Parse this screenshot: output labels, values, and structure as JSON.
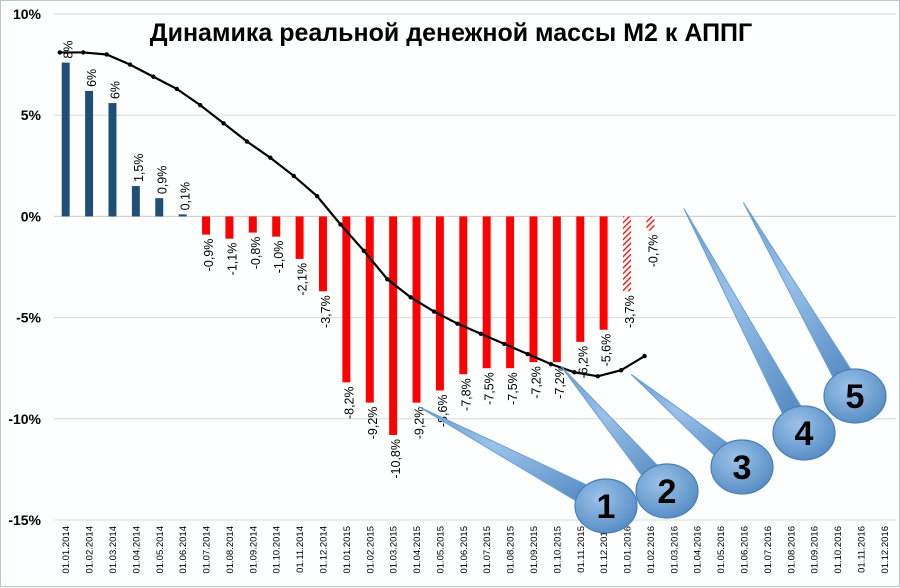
{
  "chart_data": {
    "type": "bar",
    "title": "Динамика реальной денежной массы М2 к АППГ",
    "ylim": [
      -15,
      10
    ],
    "y_ticks": [
      "10%",
      "5%",
      "0%",
      "-5%",
      "-10%",
      "-15%"
    ],
    "y_tick_values": [
      10,
      5,
      0,
      -5,
      -10,
      -15
    ],
    "grid": true,
    "categories": [
      "01.01.2014",
      "01.02.2014",
      "01.03.2014",
      "01.04.2014",
      "01.05.2014",
      "01.06.2014",
      "01.07.2014",
      "01.08.2014",
      "01.09.2014",
      "01.10.2014",
      "01.11.2014",
      "01.12.2014",
      "01.01.2015",
      "01.02.2015",
      "01.03.2015",
      "01.04.2015",
      "01.05.2015",
      "01.06.2015",
      "01.07.2015",
      "01.08.2015",
      "01.09.2015",
      "01.10.2015",
      "01.11.2015",
      "01.12.2015",
      "01.01.2016",
      "01.02.2016",
      "01.03.2016",
      "01.04.2016",
      "01.05.2016",
      "01.06.2016",
      "01.07.2016",
      "01.08.2016",
      "01.09.2016",
      "01.10.2016",
      "01.11.2016",
      "01.12.2016"
    ],
    "bars": {
      "values": [
        7.6,
        6.2,
        5.6,
        1.5,
        0.9,
        0.1,
        -0.9,
        -1.1,
        -0.8,
        -1.0,
        -2.1,
        -3.7,
        -8.2,
        -9.2,
        -10.8,
        -9.2,
        -8.6,
        -7.8,
        -7.5,
        -7.5,
        -7.2,
        -7.2,
        -6.2,
        -5.6,
        -3.7,
        -0.7
      ],
      "labels": [
        "8%",
        "6%",
        "6%",
        "1,5%",
        "0,9%",
        "0,1%",
        "-0,9%",
        "-1,1%",
        "-0,8%",
        "-1,0%",
        "-2,1%",
        "-3,7%",
        "-8,2%",
        "-9,2%",
        "-10,8%",
        "-9,2%",
        "-8,6%",
        "-7,8%",
        "-7,5%",
        "-7,5%",
        "-7,2%",
        "-7,2%",
        "-6,2%",
        "-5,6%",
        "-3,7%",
        "-0,7%"
      ],
      "positive_color": "#1f4e79",
      "negative_color": "#ff0000",
      "hatched_from_index": 24
    },
    "trend_line": {
      "values": [
        8.1,
        8.1,
        8.0,
        7.5,
        6.9,
        6.3,
        5.5,
        4.6,
        3.7,
        2.9,
        2.0,
        1.0,
        -0.4,
        -1.7,
        -3.1,
        -4.0,
        -4.7,
        -5.3,
        -5.8,
        -6.3,
        -6.8,
        -7.3,
        -7.7,
        -7.9,
        -7.6,
        -6.9
      ],
      "color": "#000000"
    },
    "callouts": [
      {
        "label": "1",
        "target_index": 15
      },
      {
        "label": "2",
        "target_index": 21
      },
      {
        "label": "3",
        "target_index": 24
      },
      {
        "label": "4",
        "target_index": 26
      },
      {
        "label": "5",
        "target_index": 30
      }
    ],
    "callout_color": "#6a9fd4"
  }
}
